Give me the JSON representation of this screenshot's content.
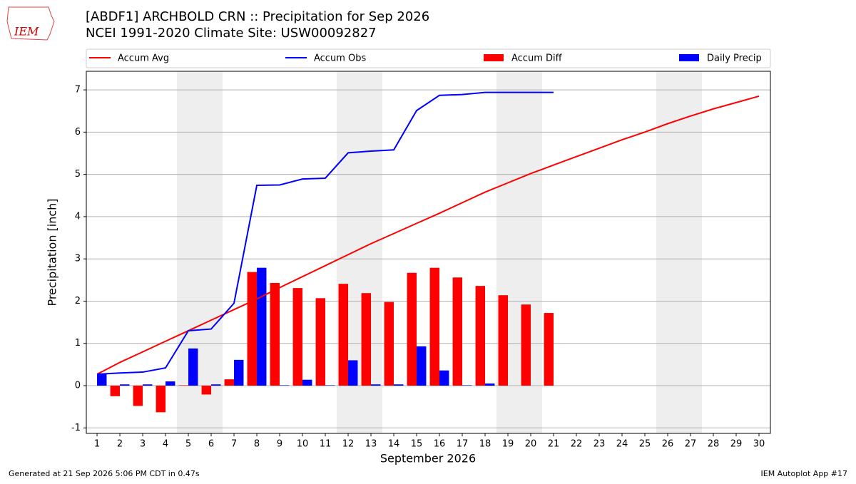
{
  "logo": "IEM",
  "footer_left": "Generated at 21 Sep 2026 5:06 PM CDT in 0.47s",
  "footer_right": "IEM Autoplot App #17",
  "chart_data": {
    "type": "bar",
    "title": "[ABDF1] ARCHBOLD CRN :: Precipitation for Sep 2026",
    "subtitle": "NCEI 1991-2020 Climate Site: USW00092827",
    "x_label": "September 2026",
    "y_label": "Precipitation [inch]",
    "x": [
      1,
      2,
      3,
      4,
      5,
      6,
      7,
      8,
      9,
      10,
      11,
      12,
      13,
      14,
      15,
      16,
      17,
      18,
      19,
      20,
      21,
      22,
      23,
      24,
      25,
      26,
      27,
      28,
      29,
      30
    ],
    "xlim": [
      0.53,
      30.5
    ],
    "xticks": [
      1,
      2,
      3,
      4,
      5,
      6,
      7,
      8,
      9,
      10,
      11,
      12,
      13,
      14,
      15,
      16,
      17,
      18,
      19,
      20,
      21,
      22,
      23,
      24,
      25,
      26,
      27,
      28,
      29,
      30
    ],
    "ylim": [
      -1.13,
      7.44
    ],
    "yticks": [
      -1,
      0,
      1,
      2,
      3,
      4,
      5,
      6,
      7
    ],
    "grid": true,
    "weekend_spans": [
      [
        4.5,
        6.5
      ],
      [
        11.5,
        13.5
      ],
      [
        18.5,
        20.5
      ],
      [
        25.5,
        27.5
      ]
    ],
    "series": [
      {
        "name": "Accum Avg",
        "kind": "line",
        "color": "#ff0000",
        "values": [
          0.27,
          0.55,
          0.8,
          1.05,
          1.3,
          1.55,
          1.8,
          2.05,
          2.32,
          2.58,
          2.84,
          3.1,
          3.36,
          3.6,
          3.84,
          4.08,
          4.33,
          4.58,
          4.8,
          5.02,
          5.22,
          5.42,
          5.62,
          5.82,
          6.0,
          6.2,
          6.38,
          6.55,
          6.7,
          6.85
        ]
      },
      {
        "name": "Accum Obs",
        "kind": "line",
        "color": "#0000ff",
        "values": [
          0.27,
          0.3,
          0.32,
          0.42,
          1.3,
          1.34,
          1.95,
          4.74,
          4.75,
          4.89,
          4.91,
          5.51,
          5.55,
          5.58,
          6.51,
          6.87,
          6.89,
          6.94,
          6.94,
          6.94,
          6.94,
          null,
          null,
          null,
          null,
          null,
          null,
          null,
          null,
          null
        ]
      },
      {
        "name": "Accum Diff",
        "kind": "bar",
        "side": "left",
        "color": "#ff0000",
        "values": [
          0,
          -0.25,
          -0.48,
          -0.63,
          0.01,
          -0.21,
          0.15,
          2.69,
          2.43,
          2.31,
          2.07,
          2.41,
          2.19,
          1.98,
          2.67,
          2.79,
          2.56,
          2.36,
          2.14,
          1.92,
          1.72,
          null,
          null,
          null,
          null,
          null,
          null,
          null,
          null,
          null
        ]
      },
      {
        "name": "Daily Precip",
        "kind": "bar",
        "side": "right",
        "color": "#0000ff",
        "values": [
          0.27,
          0.03,
          0.03,
          0.1,
          0.88,
          0.03,
          0.61,
          2.79,
          0.01,
          0.14,
          0.01,
          0.6,
          0.03,
          0.03,
          0.93,
          0.36,
          0.01,
          0.05,
          0,
          0,
          0,
          null,
          null,
          null,
          null,
          null,
          null,
          null,
          null,
          null
        ]
      }
    ]
  }
}
